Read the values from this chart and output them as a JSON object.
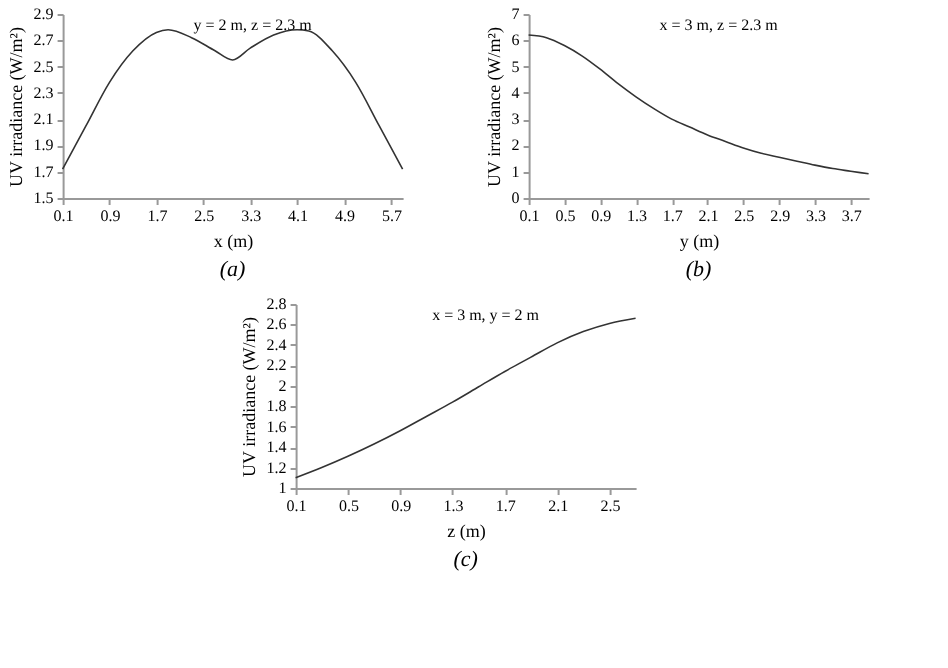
{
  "chart_data": [
    {
      "type": "line",
      "title": "y = 2 m, z = 2.3 m",
      "xlabel": "x (m)",
      "ylabel": "UV irradiance (W/m²)",
      "annotations": [
        "(a)"
      ],
      "x": [
        0.1,
        0.5,
        0.9,
        1.3,
        1.7,
        1.9,
        2.3,
        2.7,
        3.0,
        3.3,
        3.7,
        4.1,
        4.3,
        4.7,
        5.1,
        5.5,
        5.9
      ],
      "series": [
        {
          "color": "#333333",
          "values": [
            1.72,
            2.05,
            2.38,
            2.62,
            2.76,
            2.78,
            2.72,
            2.62,
            2.55,
            2.64,
            2.74,
            2.78,
            2.77,
            2.62,
            2.38,
            2.05,
            1.72
          ]
        }
      ],
      "xlim": [
        0.1,
        5.9
      ],
      "xticks": [
        0.1,
        0.9,
        1.7,
        2.5,
        3.3,
        4.1,
        4.9,
        5.7
      ],
      "ylim": [
        1.5,
        2.9
      ],
      "yticks": [
        1.5,
        1.7,
        1.9,
        2.1,
        2.3,
        2.5,
        2.7,
        2.9
      ],
      "grid": false
    },
    {
      "type": "line",
      "title": "x = 3 m, z = 2.3 m",
      "xlabel": "y (m)",
      "ylabel": "UV irradiance (W/m²)",
      "annotations": [
        "(b)"
      ],
      "x": [
        0.1,
        0.3,
        0.5,
        0.7,
        0.9,
        1.1,
        1.3,
        1.5,
        1.7,
        1.9,
        2.1,
        2.3,
        2.5,
        2.7,
        2.9,
        3.1,
        3.3,
        3.5,
        3.7,
        3.9
      ],
      "series": [
        {
          "color": "#333333",
          "values": [
            6.2,
            6.1,
            5.8,
            5.4,
            4.9,
            4.35,
            3.85,
            3.4,
            3.0,
            2.7,
            2.4,
            2.15,
            1.9,
            1.7,
            1.55,
            1.4,
            1.25,
            1.12,
            1.02,
            0.92
          ]
        }
      ],
      "xlim": [
        0.1,
        3.9
      ],
      "xticks": [
        0.1,
        0.5,
        0.9,
        1.3,
        1.7,
        2.1,
        2.5,
        2.9,
        3.3,
        3.7
      ],
      "ylim": [
        0,
        7
      ],
      "yticks": [
        0,
        1,
        2,
        3,
        4,
        5,
        6,
        7
      ],
      "grid": false
    },
    {
      "type": "line",
      "title": "x = 3 m, y = 2 m",
      "xlabel": "z (m)",
      "ylabel": "UV irradiance (W/m²)",
      "annotations": [
        "(c)"
      ],
      "x": [
        0.1,
        0.3,
        0.5,
        0.7,
        0.9,
        1.1,
        1.3,
        1.5,
        1.7,
        1.9,
        2.1,
        2.3,
        2.5,
        2.7
      ],
      "series": [
        {
          "color": "#333333",
          "values": [
            1.1,
            1.2,
            1.31,
            1.43,
            1.56,
            1.7,
            1.84,
            1.99,
            2.14,
            2.28,
            2.42,
            2.53,
            2.61,
            2.66
          ]
        }
      ],
      "xlim": [
        0.1,
        2.7
      ],
      "xticks": [
        0.1,
        0.5,
        0.9,
        1.3,
        1.7,
        2.1,
        2.5
      ],
      "ylim": [
        1,
        2.8
      ],
      "yticks": [
        1,
        1.2,
        1.4,
        1.6,
        1.8,
        2,
        2.2,
        2.4,
        2.6,
        2.8
      ],
      "grid": false
    }
  ]
}
